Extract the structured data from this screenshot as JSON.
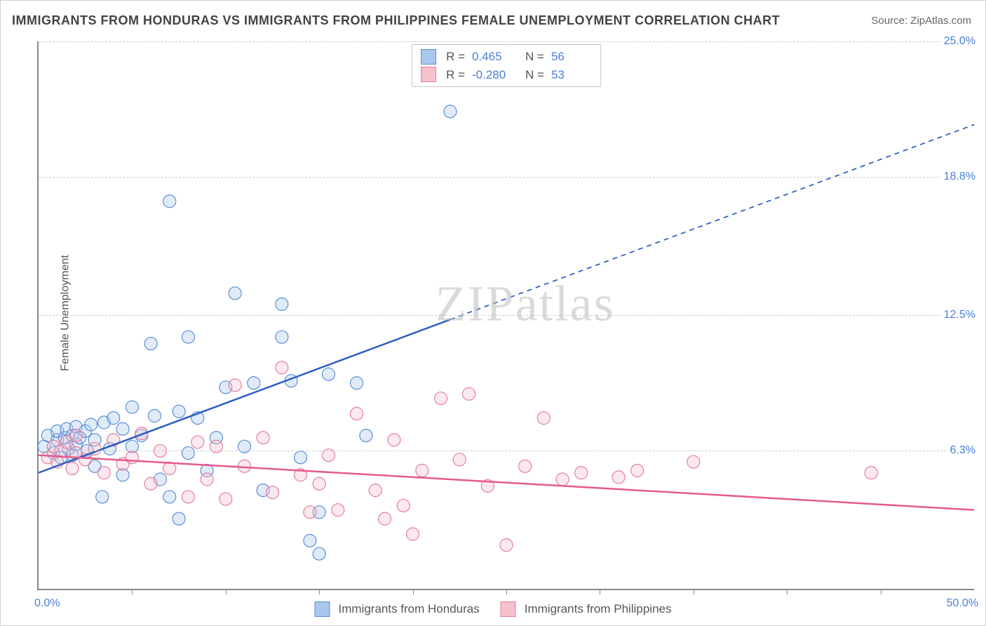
{
  "title": "IMMIGRANTS FROM HONDURAS VS IMMIGRANTS FROM PHILIPPINES FEMALE UNEMPLOYMENT CORRELATION CHART",
  "source_label": "Source: ",
  "source_name": "ZipAtlas.com",
  "ylabel": "Female Unemployment",
  "watermark": "ZIPatlas",
  "chart": {
    "type": "scatter-correlation",
    "background_color": "#ffffff",
    "grid_color": "#cccccc",
    "axis_color": "#888888",
    "xlim": [
      0,
      50
    ],
    "ylim": [
      0,
      25
    ],
    "x_unit": "%",
    "y_unit": "%",
    "xticks_minor": [
      5,
      10,
      15,
      20,
      25,
      30,
      35,
      40,
      45
    ],
    "yticks": [
      {
        "value": 6.3,
        "label": "6.3%"
      },
      {
        "value": 12.5,
        "label": "12.5%"
      },
      {
        "value": 18.8,
        "label": "18.8%"
      },
      {
        "value": 25.0,
        "label": "25.0%"
      }
    ],
    "xlabel_min": "0.0%",
    "xlabel_max": "50.0%",
    "marker_radius": 9,
    "marker_opacity": 0.35,
    "line_width": 2.5,
    "series": [
      {
        "id": "honduras",
        "label": "Immigrants from Honduras",
        "color_fill": "#a9c7ec",
        "color_stroke": "#5a8fd6",
        "line_color": "#2c5fbf",
        "R": "0.465",
        "N": "56",
        "trend": {
          "x1": 0,
          "y1": 5.3,
          "x2": 50,
          "y2": 21.2,
          "solid_until_x": 22
        },
        "points": [
          [
            0.3,
            6.5
          ],
          [
            0.5,
            7.0
          ],
          [
            0.8,
            6.2
          ],
          [
            1.0,
            6.8
          ],
          [
            1.0,
            7.2
          ],
          [
            1.2,
            6.0
          ],
          [
            1.4,
            6.9
          ],
          [
            1.5,
            7.3
          ],
          [
            1.6,
            6.4
          ],
          [
            1.8,
            7.0
          ],
          [
            1.8,
            6.1
          ],
          [
            2.0,
            7.4
          ],
          [
            2.0,
            6.6
          ],
          [
            2.2,
            6.9
          ],
          [
            2.5,
            7.2
          ],
          [
            2.6,
            6.3
          ],
          [
            2.8,
            7.5
          ],
          [
            3.0,
            6.8
          ],
          [
            3.0,
            5.6
          ],
          [
            3.5,
            7.6
          ],
          [
            3.8,
            6.4
          ],
          [
            4.0,
            7.8
          ],
          [
            4.5,
            7.3
          ],
          [
            4.5,
            5.2
          ],
          [
            3.4,
            4.2
          ],
          [
            5.0,
            6.5
          ],
          [
            5.0,
            8.3
          ],
          [
            5.5,
            7.0
          ],
          [
            6.0,
            11.2
          ],
          [
            6.2,
            7.9
          ],
          [
            6.5,
            5.0
          ],
          [
            7.0,
            17.7
          ],
          [
            7.0,
            4.2
          ],
          [
            7.5,
            8.1
          ],
          [
            7.5,
            3.2
          ],
          [
            8.0,
            11.5
          ],
          [
            8.0,
            6.2
          ],
          [
            8.5,
            7.8
          ],
          [
            9.0,
            5.4
          ],
          [
            9.5,
            6.9
          ],
          [
            10.0,
            9.2
          ],
          [
            10.5,
            13.5
          ],
          [
            11.0,
            6.5
          ],
          [
            11.5,
            9.4
          ],
          [
            12.0,
            4.5
          ],
          [
            13.0,
            11.5
          ],
          [
            13.0,
            13.0
          ],
          [
            13.5,
            9.5
          ],
          [
            14.0,
            6.0
          ],
          [
            15.0,
            1.6
          ],
          [
            15.0,
            3.5
          ],
          [
            15.5,
            9.8
          ],
          [
            17.0,
            9.4
          ],
          [
            17.5,
            7.0
          ],
          [
            22.0,
            21.8
          ],
          [
            14.5,
            2.2
          ]
        ]
      },
      {
        "id": "philippines",
        "label": "Immigrants from Philippines",
        "color_fill": "#f4c1cd",
        "color_stroke": "#e67ea0",
        "line_color": "#e55a8a",
        "R": "-0.280",
        "N": "53",
        "trend": {
          "x1": 0,
          "y1": 6.1,
          "x2": 50,
          "y2": 3.6,
          "solid_until_x": 50
        },
        "points": [
          [
            0.5,
            6.0
          ],
          [
            0.8,
            6.5
          ],
          [
            1.0,
            5.8
          ],
          [
            1.2,
            6.3
          ],
          [
            1.5,
            6.7
          ],
          [
            1.8,
            5.5
          ],
          [
            2.0,
            6.2
          ],
          [
            2.0,
            7.0
          ],
          [
            2.5,
            5.9
          ],
          [
            3.0,
            6.4
          ],
          [
            3.5,
            5.3
          ],
          [
            4.0,
            6.8
          ],
          [
            4.5,
            5.7
          ],
          [
            5.0,
            6.0
          ],
          [
            5.5,
            7.1
          ],
          [
            6.0,
            4.8
          ],
          [
            6.5,
            6.3
          ],
          [
            7.0,
            5.5
          ],
          [
            8.0,
            4.2
          ],
          [
            8.5,
            6.7
          ],
          [
            9.0,
            5.0
          ],
          [
            9.5,
            6.5
          ],
          [
            10.0,
            4.1
          ],
          [
            10.5,
            9.3
          ],
          [
            11.0,
            5.6
          ],
          [
            12.0,
            6.9
          ],
          [
            12.5,
            4.4
          ],
          [
            13.0,
            10.1
          ],
          [
            14.0,
            5.2
          ],
          [
            14.5,
            3.5
          ],
          [
            15.0,
            4.8
          ],
          [
            15.5,
            6.1
          ],
          [
            16.0,
            3.6
          ],
          [
            17.0,
            8.0
          ],
          [
            18.0,
            4.5
          ],
          [
            18.5,
            3.2
          ],
          [
            19.0,
            6.8
          ],
          [
            20.0,
            2.5
          ],
          [
            20.5,
            5.4
          ],
          [
            21.5,
            8.7
          ],
          [
            22.5,
            5.9
          ],
          [
            23.0,
            8.9
          ],
          [
            24.0,
            4.7
          ],
          [
            25.0,
            2.0
          ],
          [
            26.0,
            5.6
          ],
          [
            27.0,
            7.8
          ],
          [
            28.0,
            5.0
          ],
          [
            29.0,
            5.3
          ],
          [
            31.0,
            5.1
          ],
          [
            32.0,
            5.4
          ],
          [
            35.0,
            5.8
          ],
          [
            44.5,
            5.3
          ],
          [
            19.5,
            3.8
          ]
        ]
      }
    ]
  }
}
